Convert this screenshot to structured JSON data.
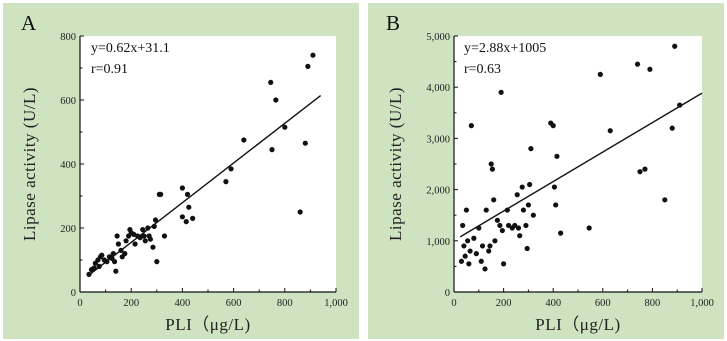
{
  "chart_data": [
    {
      "type": "scatter",
      "panel_label": "A",
      "equation": "y=0.62x+31.1",
      "r_label": "r=0.91",
      "xlabel": "PLI（μg/L)",
      "ylabel": "Lipase activity (U/L)",
      "xlim": [
        0,
        1000
      ],
      "ylim": [
        0,
        800
      ],
      "x_ticks": [
        0,
        200,
        400,
        600,
        800,
        1000
      ],
      "x_tick_labels": [
        "0",
        "200",
        "400",
        "600",
        "800",
        "1,000"
      ],
      "y_ticks": [
        0,
        200,
        400,
        600,
        800
      ],
      "y_tick_labels": [
        "0",
        "200",
        "400",
        "600",
        "800"
      ],
      "fit": {
        "slope": 0.62,
        "intercept": 31.1,
        "x_range": [
          30,
          940
        ]
      },
      "grid": false,
      "points": [
        [
          35,
          55
        ],
        [
          45,
          70
        ],
        [
          55,
          75
        ],
        [
          60,
          90
        ],
        [
          70,
          100
        ],
        [
          75,
          80
        ],
        [
          80,
          110
        ],
        [
          85,
          115
        ],
        [
          95,
          100
        ],
        [
          105,
          95
        ],
        [
          115,
          110
        ],
        [
          125,
          105
        ],
        [
          130,
          120
        ],
        [
          135,
          95
        ],
        [
          140,
          65
        ],
        [
          145,
          175
        ],
        [
          150,
          150
        ],
        [
          160,
          130
        ],
        [
          165,
          110
        ],
        [
          175,
          120
        ],
        [
          180,
          160
        ],
        [
          190,
          175
        ],
        [
          195,
          195
        ],
        [
          200,
          185
        ],
        [
          210,
          180
        ],
        [
          215,
          150
        ],
        [
          225,
          175
        ],
        [
          235,
          170
        ],
        [
          245,
          195
        ],
        [
          250,
          175
        ],
        [
          255,
          160
        ],
        [
          265,
          200
        ],
        [
          270,
          175
        ],
        [
          275,
          165
        ],
        [
          285,
          140
        ],
        [
          290,
          205
        ],
        [
          295,
          225
        ],
        [
          300,
          95
        ],
        [
          310,
          305
        ],
        [
          315,
          305
        ],
        [
          330,
          175
        ],
        [
          400,
          325
        ],
        [
          400,
          235
        ],
        [
          415,
          220
        ],
        [
          420,
          305
        ],
        [
          425,
          265
        ],
        [
          440,
          230
        ],
        [
          570,
          345
        ],
        [
          590,
          385
        ],
        [
          640,
          475
        ],
        [
          745,
          655
        ],
        [
          750,
          445
        ],
        [
          765,
          600
        ],
        [
          800,
          515
        ],
        [
          860,
          250
        ],
        [
          880,
          465
        ],
        [
          890,
          705
        ],
        [
          910,
          740
        ]
      ]
    },
    {
      "type": "scatter",
      "panel_label": "B",
      "equation": "y=2.88x+1005",
      "r_label": "r=0.63",
      "xlabel": "PLI（μg/L)",
      "ylabel": "Lipase activity (U/L)",
      "xlim": [
        0,
        1000
      ],
      "ylim": [
        0,
        5000
      ],
      "x_ticks": [
        0,
        200,
        400,
        600,
        800,
        1000
      ],
      "x_tick_labels": [
        "0",
        "200",
        "400",
        "600",
        "800",
        "1,000"
      ],
      "y_ticks": [
        0,
        1000,
        2000,
        3000,
        4000,
        5000
      ],
      "y_tick_labels": [
        "0",
        "1,000",
        "2,000",
        "3,000",
        "4,000",
        "5,000"
      ],
      "fit": {
        "slope": 2.88,
        "intercept": 1005,
        "x_range": [
          25,
          1000
        ]
      },
      "grid": false,
      "points": [
        [
          30,
          600
        ],
        [
          35,
          1300
        ],
        [
          40,
          900
        ],
        [
          45,
          700
        ],
        [
          50,
          1600
        ],
        [
          55,
          1000
        ],
        [
          60,
          550
        ],
        [
          65,
          800
        ],
        [
          70,
          3250
        ],
        [
          80,
          1050
        ],
        [
          90,
          750
        ],
        [
          100,
          1250
        ],
        [
          110,
          600
        ],
        [
          115,
          900
        ],
        [
          125,
          450
        ],
        [
          130,
          1600
        ],
        [
          140,
          800
        ],
        [
          145,
          900
        ],
        [
          150,
          2500
        ],
        [
          155,
          2400
        ],
        [
          160,
          1800
        ],
        [
          165,
          1000
        ],
        [
          175,
          1400
        ],
        [
          185,
          1300
        ],
        [
          190,
          3900
        ],
        [
          195,
          1200
        ],
        [
          200,
          550
        ],
        [
          215,
          1600
        ],
        [
          220,
          1300
        ],
        [
          235,
          1250
        ],
        [
          245,
          1300
        ],
        [
          255,
          1900
        ],
        [
          260,
          1250
        ],
        [
          265,
          1100
        ],
        [
          275,
          2050
        ],
        [
          280,
          1600
        ],
        [
          290,
          1300
        ],
        [
          295,
          850
        ],
        [
          300,
          1700
        ],
        [
          305,
          2100
        ],
        [
          310,
          2800
        ],
        [
          320,
          1500
        ],
        [
          390,
          3300
        ],
        [
          400,
          3250
        ],
        [
          405,
          2050
        ],
        [
          410,
          1700
        ],
        [
          415,
          2650
        ],
        [
          430,
          1150
        ],
        [
          545,
          1250
        ],
        [
          590,
          4250
        ],
        [
          630,
          3150
        ],
        [
          740,
          4450
        ],
        [
          750,
          2350
        ],
        [
          770,
          2400
        ],
        [
          790,
          4350
        ],
        [
          850,
          1800
        ],
        [
          880,
          3200
        ],
        [
          890,
          4800
        ],
        [
          910,
          3650
        ]
      ]
    }
  ]
}
